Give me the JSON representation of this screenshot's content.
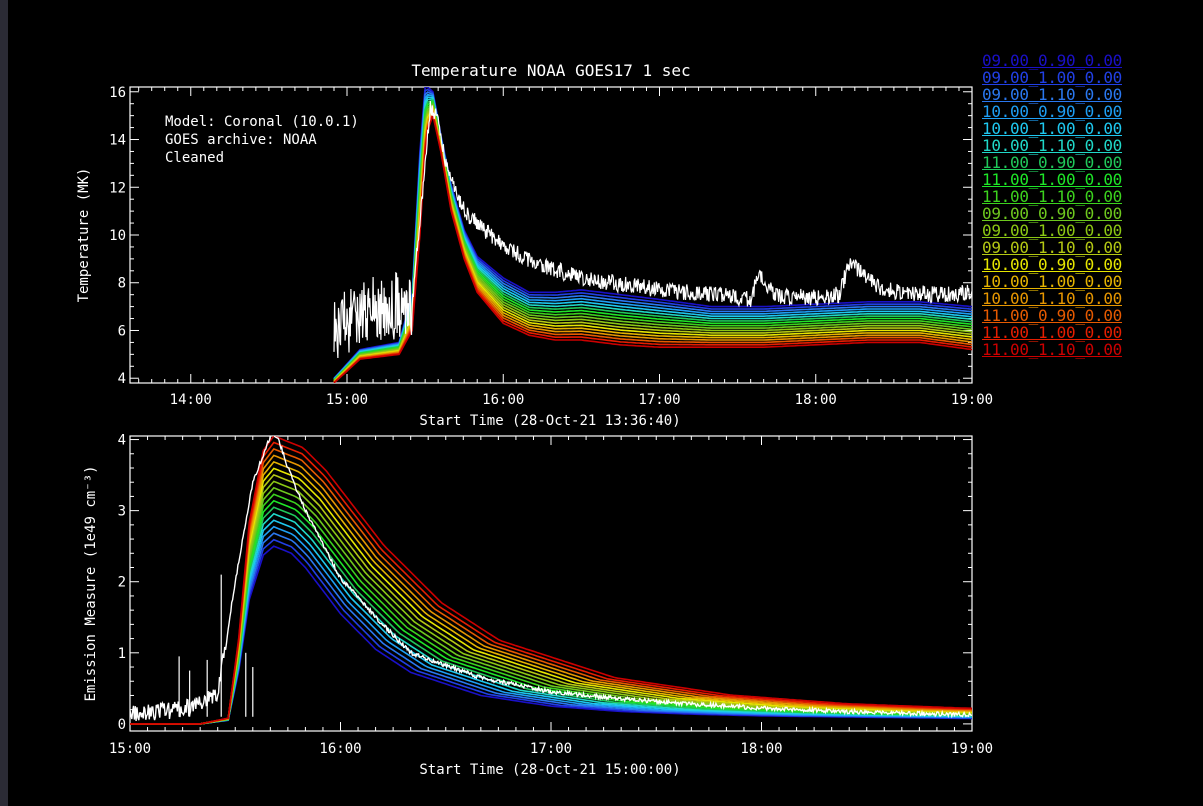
{
  "window": {
    "background": "#2b2b35"
  },
  "legend": [
    {
      "label": "09.00_0.90_0.00",
      "color": "#1a10c8"
    },
    {
      "label": "09.00_1.00_0.00",
      "color": "#2140e6"
    },
    {
      "label": "09.00_1.10_0.00",
      "color": "#2a78f0"
    },
    {
      "label": "10.00_0.90_0.00",
      "color": "#1e9ff5"
    },
    {
      "label": "10.00_1.00_0.00",
      "color": "#1ec8f0"
    },
    {
      "label": "10.00_1.10_0.00",
      "color": "#20d8c8"
    },
    {
      "label": "11.00_0.90_0.00",
      "color": "#20c85a"
    },
    {
      "label": "11.00_1.00_0.00",
      "color": "#1ee628"
    },
    {
      "label": "11.00_1.10_0.00",
      "color": "#3cd21e"
    },
    {
      "label": "09.00_0.90_0.00",
      "color": "#6ec81e"
    },
    {
      "label": "09.00_1.00_0.00",
      "color": "#8cc814"
    },
    {
      "label": "09.00_1.10_0.00",
      "color": "#b4c814"
    },
    {
      "label": "10.00_0.90_0.00",
      "color": "#e6e600"
    },
    {
      "label": "10.00_1.00_0.00",
      "color": "#e6b400"
    },
    {
      "label": "10.00_1.10_0.00",
      "color": "#e69600"
    },
    {
      "label": "11.00_0.90_0.00",
      "color": "#e65a00"
    },
    {
      "label": "11.00_1.00_0.00",
      "color": "#e61e00"
    },
    {
      "label": "11.00_1.10_0.00",
      "color": "#cc0000"
    }
  ],
  "chart_data": [
    {
      "type": "line",
      "title": "Temperature  NOAA GOES17 1 sec",
      "xlabel": "Start Time (28-Oct-21 13:36:40)",
      "ylabel": "Temperature (MK)",
      "xlim": [
        "13:36:40",
        "19:00"
      ],
      "ylim": [
        3.8,
        16.2
      ],
      "x_ticks": [
        "14:00",
        "15:00",
        "16:00",
        "17:00",
        "18:00",
        "19:00"
      ],
      "y_ticks": [
        4,
        6,
        8,
        10,
        12,
        14,
        16
      ],
      "annotations": [
        "Model: Coronal (10.0.1)",
        "GOES archive: NOAA",
        "Cleaned"
      ],
      "observed": {
        "name": "",
        "color": "#ffffff",
        "x": [
          "14:55",
          "15:10",
          "15:25",
          "15:30",
          "15:32",
          "15:35",
          "15:38",
          "15:45",
          "15:55",
          "16:10",
          "16:30",
          "17:00",
          "17:20",
          "17:35",
          "17:38",
          "17:45",
          "18:00",
          "18:09",
          "18:13",
          "18:25",
          "18:45",
          "19:00"
        ],
        "y": [
          6.0,
          6.9,
          7.1,
          13.0,
          15.4,
          14.8,
          13.0,
          11.0,
          10.0,
          8.9,
          8.2,
          7.7,
          7.5,
          7.3,
          8.4,
          7.4,
          7.4,
          7.5,
          8.9,
          7.7,
          7.5,
          7.6
        ]
      },
      "model_curves": {
        "x": [
          "14:55",
          "15:05",
          "15:20",
          "15:25",
          "15:28",
          "15:30",
          "15:31",
          "15:33",
          "15:36",
          "15:40",
          "15:45",
          "15:50",
          "16:00",
          "16:10",
          "16:20",
          "16:30",
          "16:45",
          "17:00",
          "17:20",
          "17:40",
          "18:00",
          "18:20",
          "18:40",
          "19:00"
        ],
        "count": 18,
        "upper_curve_y": [
          4.0,
          5.2,
          5.5,
          7.5,
          13.5,
          16.2,
          16.2,
          16.0,
          14.2,
          12.1,
          10.2,
          9.1,
          8.2,
          7.6,
          7.6,
          7.7,
          7.5,
          7.3,
          7.0,
          7.0,
          7.1,
          7.2,
          7.2,
          7.0
        ],
        "lower_curve_y": [
          3.8,
          4.8,
          5.0,
          6.0,
          10.0,
          13.5,
          14.4,
          15.0,
          13.5,
          11.0,
          9.0,
          7.6,
          6.3,
          5.8,
          5.6,
          5.6,
          5.4,
          5.3,
          5.3,
          5.3,
          5.4,
          5.5,
          5.5,
          5.2
        ]
      }
    },
    {
      "type": "line",
      "title": "",
      "xlabel": "Start Time (28-Oct-21 15:00:00)",
      "ylabel": "Emission Measure (1e49 cm⁻³)",
      "xlim": [
        "15:00",
        "19:00"
      ],
      "ylim": [
        -0.1,
        4.05
      ],
      "x_ticks": [
        "15:00",
        "16:00",
        "17:00",
        "18:00",
        "19:00"
      ],
      "y_ticks": [
        0,
        1,
        2,
        3,
        4
      ],
      "observed": {
        "name": "",
        "color": "#ffffff",
        "x": [
          "15:00",
          "15:15",
          "15:25",
          "15:30",
          "15:35",
          "15:40",
          "15:42",
          "15:45",
          "15:50",
          "16:00",
          "16:10",
          "16:20",
          "16:40",
          "17:00",
          "17:20",
          "17:40",
          "18:00",
          "18:20",
          "18:40",
          "19:00"
        ],
        "y": [
          0.15,
          0.2,
          0.4,
          2.0,
          3.4,
          4.05,
          4.05,
          3.6,
          3.0,
          2.05,
          1.5,
          1.0,
          0.65,
          0.45,
          0.35,
          0.28,
          0.22,
          0.18,
          0.15,
          0.13
        ],
        "spikes": [
          {
            "x": "15:14",
            "y": 0.95
          },
          {
            "x": "15:17",
            "y": 0.75
          },
          {
            "x": "15:22",
            "y": 0.9
          },
          {
            "x": "15:26",
            "y": 2.1
          },
          {
            "x": "15:33",
            "y": 1.0
          },
          {
            "x": "15:35",
            "y": 0.8
          }
        ]
      },
      "model_curves": {
        "x": [
          "15:00",
          "15:20",
          "15:28",
          "15:31",
          "15:34",
          "15:38",
          "15:41",
          "15:46",
          "15:50",
          "16:00",
          "16:10",
          "16:20",
          "16:40",
          "17:00",
          "17:20",
          "17:40",
          "18:00",
          "18:20",
          "18:40",
          "19:00"
        ],
        "count": 18,
        "peak_min": 2.5,
        "peak_max": 4.05,
        "shape": [
          0.0,
          0.0,
          0.02,
          0.3,
          0.7,
          0.95,
          1.0,
          0.96,
          0.88,
          0.62,
          0.42,
          0.29,
          0.16,
          0.1,
          0.07,
          0.055,
          0.045,
          0.04,
          0.035,
          0.03
        ],
        "tail_slowdown": 0.65
      }
    }
  ]
}
